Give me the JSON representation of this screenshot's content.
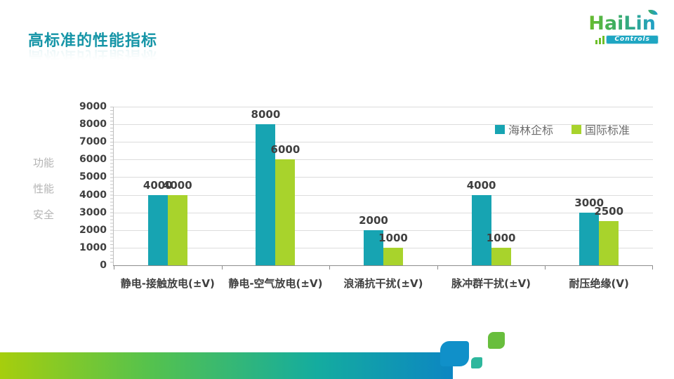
{
  "slide": {
    "title": "高标准的性能指标",
    "logo": {
      "name": "HaiLin",
      "subtitle": "Controls"
    }
  },
  "chart_data": {
    "type": "bar",
    "title": "",
    "categories": [
      "静电-接触放电(±V)",
      "静电-空气放电(±V)",
      "浪涌抗干扰(±V)",
      "脉冲群干扰(±V)",
      "耐压绝缘(V)"
    ],
    "series": [
      {
        "name": "海林企标",
        "color": "#17A4B2",
        "values": [
          4000,
          8000,
          2000,
          4000,
          3000
        ]
      },
      {
        "name": "国际标准",
        "color": "#A8D32C",
        "values": [
          4000,
          6000,
          1000,
          1000,
          2500
        ]
      }
    ],
    "ylim": [
      0,
      9000
    ],
    "ytick_step": 1000,
    "axis_title_lines": [
      "功能",
      "性能",
      "安全"
    ],
    "legend_position": "top-right",
    "grid": "horizontal",
    "data_labels": true
  },
  "colors": {
    "title": "#1695A7",
    "series1": "#17A4B2",
    "series2": "#A8D32C",
    "label_text": "#3F3F3F",
    "axis_title_text": "#B4B4B4",
    "gridline": "#DCDCDC",
    "deco_gradient_start": "#A6CE0D",
    "deco_gradient_end": "#0C86C2"
  }
}
